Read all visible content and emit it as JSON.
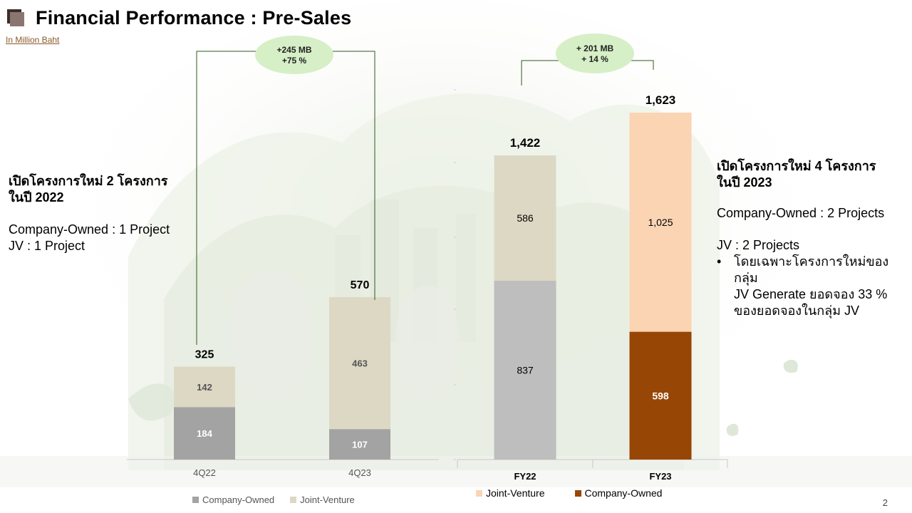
{
  "header": {
    "title": "Financial Performance : Pre-Sales",
    "unit_note": "In Million Baht"
  },
  "left_panel": {
    "heading_line1": "เปิดโครงการใหม่ 2 โครงการ",
    "heading_line2": "ในปี 2022",
    "line1": "Company-Owned : 1 Project",
    "line2": "JV : 1 Project"
  },
  "right_panel": {
    "heading_line1": "เปิดโครงการใหม่ 4 โครงการ",
    "heading_line2": "ในปี 2023",
    "line1": "Company-Owned : 2 Projects",
    "line2": "JV : 2 Projects",
    "bullet_symbol": "•",
    "bullet_line1": "โดยเฉพาะโครงการใหม่ของกลุ่ม",
    "bullet_line2": "JV   Generate ยอดจอง 33 %",
    "bullet_line3": "ของยอดจองในกลุ่ม JV"
  },
  "legend_quarterly": {
    "company_owned": "Company-Owned",
    "joint_venture": "Joint-Venture"
  },
  "legend_yearly": {
    "joint_venture": "Joint-Venture",
    "company_owned": "Company-Owned"
  },
  "page_number": "2",
  "colors": {
    "q_company": "#a3a3a3",
    "q_jv": "#ddd8c4",
    "fy22_company": "#bebebe",
    "fy22_jv": "#ddd8c4",
    "fy23_company": "#974606",
    "fy23_jv": "#fbd4b4",
    "bubble": "#d6efc7",
    "bracket": "#2e5a1c"
  },
  "chart_data": [
    {
      "type": "bar",
      "stacked": true,
      "categories": [
        "4Q22",
        "4Q23"
      ],
      "series": [
        {
          "name": "Company-Owned",
          "values": [
            184,
            107
          ]
        },
        {
          "name": "Joint-Venture",
          "values": [
            142,
            463
          ]
        }
      ],
      "totals": [
        "325",
        "570"
      ],
      "change_label_line1": "+245 MB",
      "change_label_line2": "+75 %",
      "legend": "bottom",
      "ylim": [
        0,
        700
      ]
    },
    {
      "type": "bar",
      "stacked": true,
      "categories": [
        "FY22",
        "FY23"
      ],
      "series": [
        {
          "name": "Company-Owned",
          "values": [
            837,
            598
          ]
        },
        {
          "name": "Joint-Venture",
          "values": [
            586,
            1025
          ]
        }
      ],
      "value_labels": [
        [
          "837",
          "598"
        ],
        [
          "586",
          "1,025"
        ]
      ],
      "totals": [
        "1,422",
        "1,623"
      ],
      "change_label_line1": "+ 201 MB",
      "change_label_line2": "+ 14 %",
      "legend": "bottom",
      "ylim": [
        0,
        1780
      ]
    }
  ]
}
